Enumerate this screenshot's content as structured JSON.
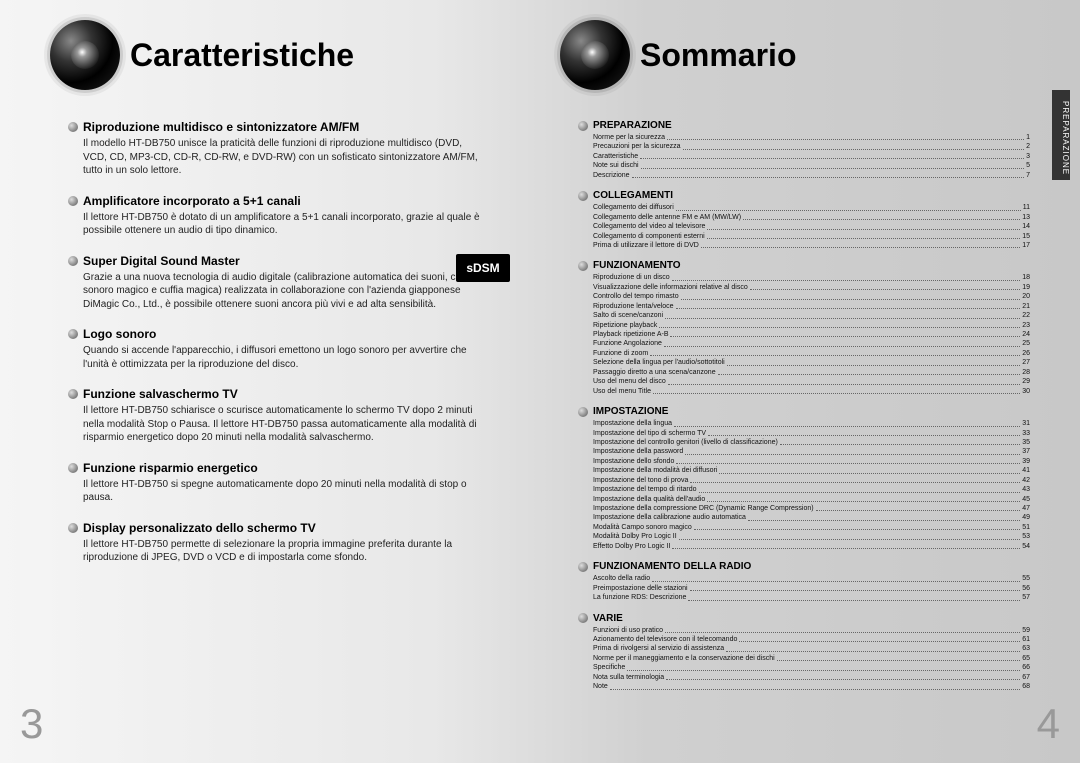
{
  "left_title": "Caratteristiche",
  "right_title": "Sommario",
  "page_left": "3",
  "page_right": "4",
  "side_tab": "PREPARAZIONE",
  "sdsm": {
    "line1": "sDSM",
    "line2": "™"
  },
  "features": [
    {
      "t": "Riproduzione multidisco e sintonizzatore AM/FM",
      "b": "Il modello HT-DB750 unisce la praticità delle funzioni di riproduzione multidisco (DVD, VCD, CD, MP3-CD, CD-R, CD-RW, e DVD-RW) con un sofisticato sintonizzatore AM/FM, tutto in un solo lettore."
    },
    {
      "t": "Amplificatore incorporato a 5+1 canali",
      "b": "Il lettore HT-DB750 è dotato di un amplificatore a 5+1 canali incorporato, grazie al quale è possibile ottenere un audio di tipo dinamico."
    },
    {
      "t": "Super Digital Sound Master",
      "b": "Grazie a una nuova tecnologia di audio digitale (calibrazione automatica dei suoni, campo sonoro magico e cuffia magica) realizzata in collaborazione con l'azienda giapponese DiMagic Co., Ltd., è possibile ottenere suoni ancora più vivi e ad alta sensibilità.",
      "sdsm": true
    },
    {
      "t": "Logo sonoro",
      "b": "Quando si accende l'apparecchio, i diffusori emettono un logo sonoro per avvertire che l'unità è ottimizzata per la riproduzione del disco."
    },
    {
      "t": "Funzione salvaschermo TV",
      "b": "Il lettore HT-DB750 schiarisce o scurisce automaticamente lo schermo TV dopo 2 minuti nella modalità Stop o Pausa. Il lettore HT-DB750 passa automaticamente alla modalità di risparmio energetico dopo 20 minuti nella modalità salvaschermo."
    },
    {
      "t": "Funzione risparmio energetico",
      "b": "Il lettore HT-DB750 si spegne automaticamente dopo 20 minuti nella modalità di stop o pausa."
    },
    {
      "t": "Display personalizzato dello schermo TV",
      "b": "Il lettore HT-DB750 permette di selezionare la propria immagine preferita durante la riproduzione di JPEG, DVD o VCD e di impostarla come sfondo."
    }
  ],
  "toc": [
    {
      "title": "PREPARAZIONE",
      "items": [
        {
          "l": "Norme per la sicurezza",
          "p": "1"
        },
        {
          "l": "Precauzioni per la sicurezza",
          "p": "2"
        },
        {
          "l": "Caratteristiche",
          "p": "3"
        },
        {
          "l": "Note sui dischi",
          "p": "5"
        },
        {
          "l": "Descrizione",
          "p": "7"
        }
      ]
    },
    {
      "title": "COLLEGAMENTI",
      "items": [
        {
          "l": "Collegamento dei diffusori",
          "p": "11"
        },
        {
          "l": "Collegamento delle antenne FM e AM (MW/LW)",
          "p": "13"
        },
        {
          "l": "Collegamento del video al televisore",
          "p": "14"
        },
        {
          "l": "Collegamento di componenti esterni",
          "p": "15"
        },
        {
          "l": "Prima di utilizzare il lettore di DVD",
          "p": "17"
        }
      ]
    },
    {
      "title": "FUNZIONAMENTO",
      "items": [
        {
          "l": "Riproduzione di un disco",
          "p": "18"
        },
        {
          "l": "Visualizzazione delle informazioni relative al disco",
          "p": "19"
        },
        {
          "l": "Controllo del tempo rimasto",
          "p": "20"
        },
        {
          "l": "Riproduzione lenta/veloce",
          "p": "21"
        },
        {
          "l": "Salto di scene/canzoni",
          "p": "22"
        },
        {
          "l": "Ripetizione playback",
          "p": "23"
        },
        {
          "l": "Playback ripetizione A-B",
          "p": "24"
        },
        {
          "l": "Funzione Angolazione",
          "p": "25"
        },
        {
          "l": "Funzione di zoom",
          "p": "26"
        },
        {
          "l": "Selezione della lingua per l'audio/sottotitoli",
          "p": "27"
        },
        {
          "l": "Passaggio diretto a una scena/canzone",
          "p": "28"
        },
        {
          "l": "Uso del menu del disco",
          "p": "29"
        },
        {
          "l": "Uso del menu Title",
          "p": "30"
        }
      ]
    },
    {
      "title": "IMPOSTAZIONE",
      "items": [
        {
          "l": "Impostazione della lingua",
          "p": "31"
        },
        {
          "l": "Impostazione del tipo di schermo TV",
          "p": "33"
        },
        {
          "l": "Impostazione del controllo genitori (livello di classificazione)",
          "p": "35"
        },
        {
          "l": "Impostazione della password",
          "p": "37"
        },
        {
          "l": "Impostazione dello sfondo",
          "p": "39"
        },
        {
          "l": "Impostazione della modalità dei diffusori",
          "p": "41"
        },
        {
          "l": "Impostazione del tono di prova",
          "p": "42"
        },
        {
          "l": "Impostazione del tempo di ritardo",
          "p": "43"
        },
        {
          "l": "Impostazione della qualità dell'audio",
          "p": "45"
        },
        {
          "l": "Impostazione della compressione DRC (Dynamic Range Compression)",
          "p": "47"
        },
        {
          "l": "Impostazione della calibrazione audio automatica",
          "p": "49"
        },
        {
          "l": "Modalità Campo sonoro magico",
          "p": "51"
        },
        {
          "l": "Modalità Dolby Pro Logic II",
          "p": "53"
        },
        {
          "l": "Effetto Dolby Pro Logic II",
          "p": "54"
        }
      ]
    },
    {
      "title": "FUNZIONAMENTO DELLA RADIO",
      "items": [
        {
          "l": "Ascolto della radio",
          "p": "55"
        },
        {
          "l": "Preimpostazione delle stazioni",
          "p": "56"
        },
        {
          "l": "La funzione RDS: Descrizione",
          "p": "57"
        }
      ]
    },
    {
      "title": "VARIE",
      "items": [
        {
          "l": "Funzioni di uso pratico",
          "p": "59"
        },
        {
          "l": "Azionamento del televisore con il telecomando",
          "p": "61"
        },
        {
          "l": "Prima di rivolgersi al servizio di assistenza",
          "p": "63"
        },
        {
          "l": "Norme per il maneggiamento e la conservazione dei dischi",
          "p": "65"
        },
        {
          "l": "Specifiche",
          "p": "66"
        },
        {
          "l": "Nota sulla terminologia",
          "p": "67"
        },
        {
          "l": "Note",
          "p": "68"
        }
      ]
    }
  ]
}
